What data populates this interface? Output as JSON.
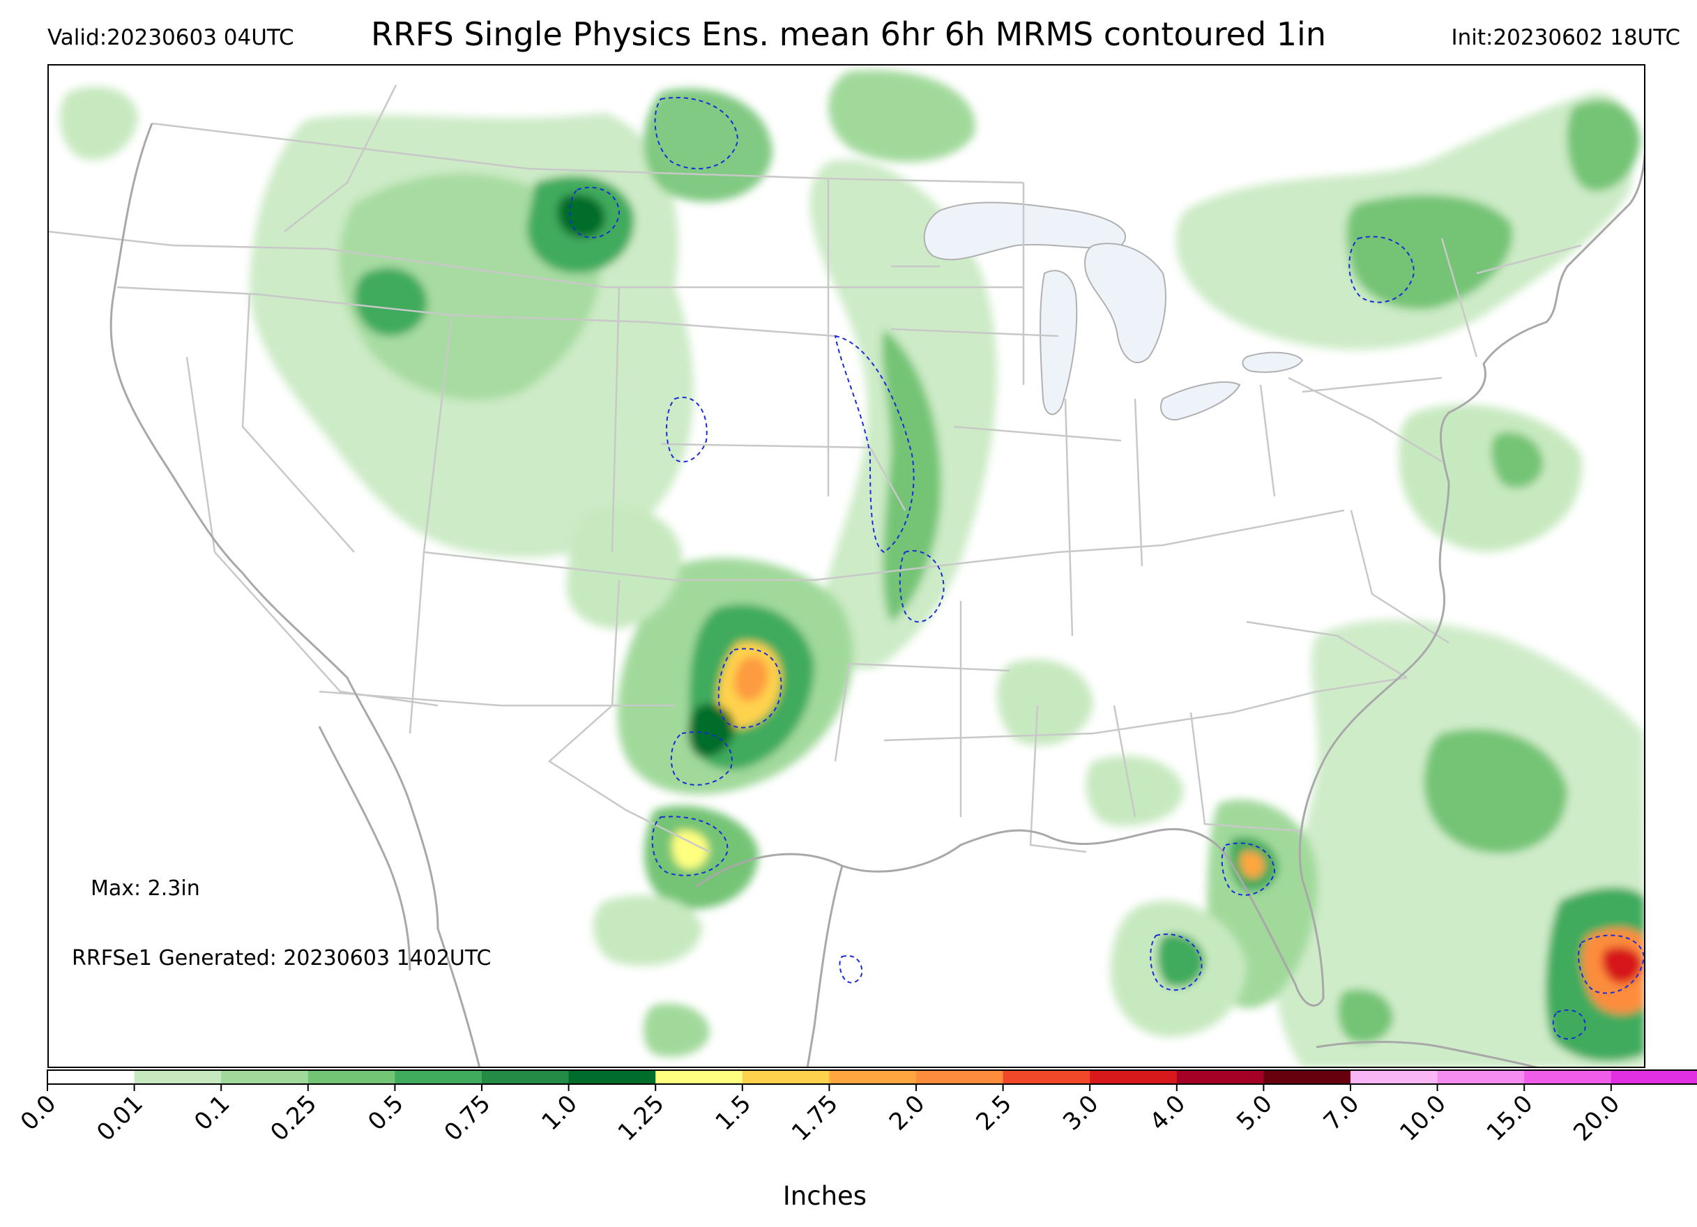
{
  "header": {
    "valid": "Valid:20230603 04UTC",
    "title": "RRFS Single Physics Ens. mean 6hr 6h MRMS contoured 1in",
    "init": "Init:20230602 18UTC"
  },
  "notes": {
    "max": "Max: 2.3in",
    "generated": "RRFSe1 Generated: 20230603 1402UTC"
  },
  "colorbar": {
    "label": "Inches",
    "ticks": [
      "0.0",
      "0.01",
      "0.1",
      "0.25",
      "0.5",
      "0.75",
      "1.0",
      "1.25",
      "1.5",
      "1.75",
      "2.0",
      "2.5",
      "3.0",
      "4.0",
      "5.0",
      "7.0",
      "10.0",
      "15.0",
      "20.0"
    ],
    "colors": [
      "#ffffff",
      "#c7e9c0",
      "#a1d99b",
      "#74c476",
      "#41ab5d",
      "#238b45",
      "#006d2c",
      "#ffff80",
      "#ffd24d",
      "#ffa640",
      "#fd8d3c",
      "#f04828",
      "#d7191c",
      "#a50026",
      "#67000d",
      "#f9b6f5",
      "#f58cf0",
      "#f05de8",
      "#e030e0",
      "#c010d0",
      "#8a00c0"
    ],
    "extend_color": "#440088"
  },
  "colors": {
    "state_lines": "#c8c8c8",
    "coast_lines": "#a8a8a8",
    "lakes": "#eef3fa",
    "mrms_contour": "#1a2bd8"
  }
}
